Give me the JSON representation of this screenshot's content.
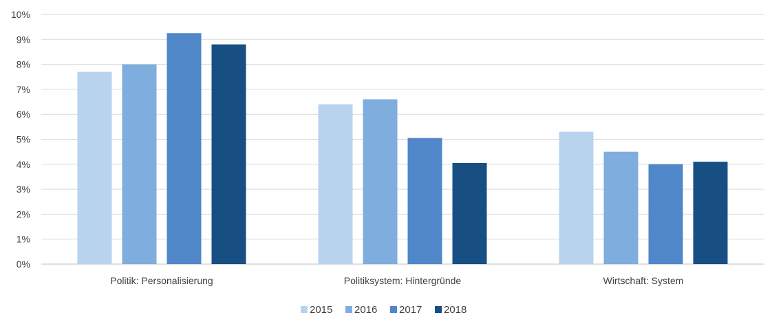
{
  "chart_data": {
    "type": "bar",
    "categories": [
      "Politik: Personalisierung",
      "Politiksystem: Hintergründe",
      "Wirtschaft: System"
    ],
    "series": [
      {
        "name": "2015",
        "values": [
          7.7,
          6.4,
          5.3
        ],
        "color": "#b8d3ee"
      },
      {
        "name": "2016",
        "values": [
          8.0,
          6.6,
          4.5
        ],
        "color": "#7fadde"
      },
      {
        "name": "2017",
        "values": [
          9.25,
          5.05,
          4.0
        ],
        "color": "#4f87c8"
      },
      {
        "name": "2018",
        "values": [
          8.8,
          4.05,
          4.1
        ],
        "color": "#174f83"
      }
    ],
    "ylim": [
      0,
      10
    ],
    "yticks": [
      "0%",
      "1%",
      "2%",
      "3%",
      "4%",
      "5%",
      "6%",
      "7%",
      "8%",
      "9%",
      "10%"
    ],
    "grid": true,
    "legend_position": "bottom-center"
  }
}
